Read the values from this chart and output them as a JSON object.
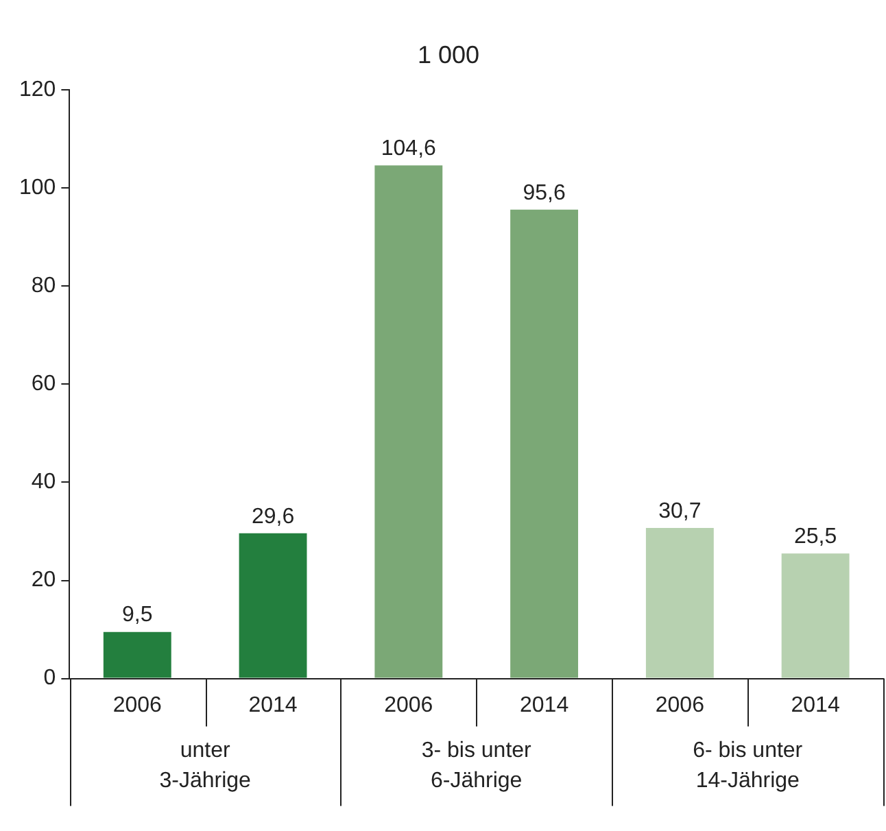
{
  "chart_data": {
    "type": "bar",
    "title": "1 000",
    "categories": [
      "2006",
      "2014",
      "2006",
      "2014",
      "2006",
      "2014"
    ],
    "values": [
      9.5,
      29.6,
      104.6,
      95.6,
      30.7,
      25.5
    ],
    "value_labels": [
      "9,5",
      "29,6",
      "104,6",
      "95,6",
      "30,7",
      "25,5"
    ],
    "colors": [
      "#237f3e",
      "#237f3e",
      "#7ba876",
      "#7ba876",
      "#b7d1b0",
      "#b7d1b0"
    ],
    "annotations": [
      "unter\n3-Jährige",
      "3- bis unter\n6-Jährige",
      "6- bis unter\n14-Jährige"
    ],
    "ylim": [
      0,
      120
    ],
    "yticks": [
      0,
      20,
      40,
      60,
      80,
      100,
      120
    ],
    "grid": false,
    "legend": false
  }
}
